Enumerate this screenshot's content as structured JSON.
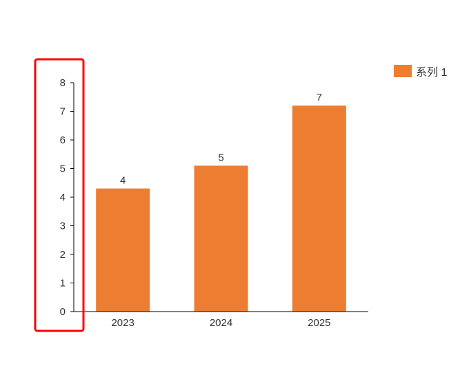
{
  "chart_data": {
    "type": "bar",
    "categories": [
      "2023",
      "2024",
      "2025"
    ],
    "series": [
      {
        "name": "系列 1",
        "values": [
          4.3,
          5.1,
          7.2
        ],
        "data_labels": [
          "4",
          "5",
          "7"
        ],
        "color": "#ED7D31"
      }
    ],
    "ylim": [
      0,
      8
    ],
    "yticks": [
      "0",
      "1",
      "2",
      "3",
      "4",
      "5",
      "6",
      "7",
      "8"
    ],
    "title": "",
    "xlabel": "",
    "ylabel": "",
    "legend_position": "top-right",
    "grid": false
  },
  "annotation": {
    "highlight_color": "#FF0000",
    "target": "y-axis"
  },
  "colors": {
    "axis": "#000000",
    "text": "#333333"
  }
}
